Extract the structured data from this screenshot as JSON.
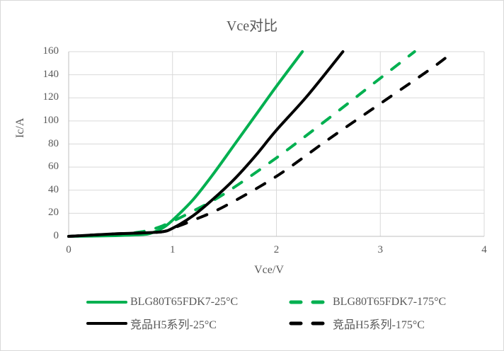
{
  "title": "Vce对比",
  "chart_data": {
    "type": "line",
    "title": "Vce对比",
    "xlabel": "Vce/V",
    "ylabel": "Ic/A",
    "xlim": [
      0,
      4
    ],
    "ylim": [
      0,
      160
    ],
    "xticks": [
      0,
      1,
      2,
      3,
      4
    ],
    "yticks": [
      0,
      20,
      40,
      60,
      80,
      100,
      120,
      140,
      160
    ],
    "grid": true,
    "legend_position": "bottom",
    "series": [
      {
        "name": "BLG80T65FDK7-25°C",
        "color": "#00B050",
        "dash": "solid",
        "x": [
          0,
          0.4,
          0.7,
          0.8,
          0.9,
          1.0,
          1.2,
          1.4,
          1.6,
          1.8,
          2.0,
          2.25
        ],
        "y": [
          0,
          0.5,
          1.5,
          3,
          7,
          14,
          32,
          55,
          80,
          105,
          130,
          160
        ]
      },
      {
        "name": "BLG80T65FDK7-175°C",
        "color": "#00B050",
        "dash": "dashed",
        "x": [
          0,
          0.5,
          0.7,
          0.8,
          0.9,
          1.0,
          1.2,
          1.5,
          2.0,
          2.5,
          3.0,
          3.33
        ],
        "y": [
          0,
          2,
          4,
          6,
          9,
          13,
          22,
          37,
          68,
          102,
          137,
          160
        ]
      },
      {
        "name": "竞品H5系列-25°C",
        "color": "#000000",
        "dash": "solid",
        "x": [
          0,
          0.4,
          0.7,
          0.9,
          1.0,
          1.2,
          1.4,
          1.6,
          1.8,
          2.0,
          2.3,
          2.64
        ],
        "y": [
          0,
          2,
          3,
          4,
          7,
          18,
          33,
          50,
          70,
          92,
          122,
          160
        ]
      },
      {
        "name": "竞品H5系列-175°C",
        "color": "#000000",
        "dash": "dashed",
        "x": [
          0,
          0.4,
          0.7,
          0.9,
          1.0,
          1.2,
          1.5,
          2.0,
          2.5,
          3.0,
          3.5,
          3.69
        ],
        "y": [
          0,
          2,
          3,
          4,
          7,
          14,
          26,
          52,
          84,
          115,
          146,
          159
        ]
      }
    ]
  },
  "legend": [
    {
      "label": "BLG80T65FDK7-25°C"
    },
    {
      "label": "BLG80T65FDK7-175°C"
    },
    {
      "label": "竞品H5系列-25°C"
    },
    {
      "label": "竞品H5系列-175°C"
    }
  ]
}
